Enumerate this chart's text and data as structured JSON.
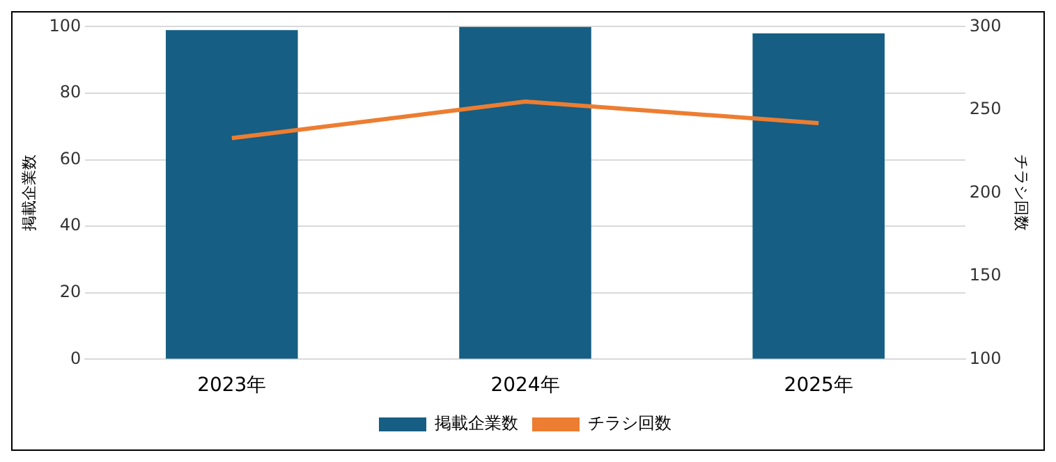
{
  "chart_data": {
    "type": "bar",
    "categories": [
      "2023年",
      "2024年",
      "2025年"
    ],
    "ylabel": "掲載企業数",
    "y2label": "チラシ回数",
    "series": [
      {
        "name": "掲載企業数",
        "color": "#165e83",
        "values": [
          99,
          100,
          98
        ]
      },
      {
        "name": "チラシ回数",
        "type": "line",
        "axis": "y2",
        "color": "#ed7d31",
        "values": [
          233,
          255,
          242
        ]
      }
    ],
    "ylim": [
      0,
      100
    ],
    "yticks": [
      0,
      20,
      40,
      60,
      80,
      100
    ],
    "y2lim": [
      100,
      300
    ],
    "y2ticks": [
      100,
      150,
      200,
      250,
      300
    ],
    "grid": "y",
    "legend": "bottom",
    "marker": "none"
  }
}
